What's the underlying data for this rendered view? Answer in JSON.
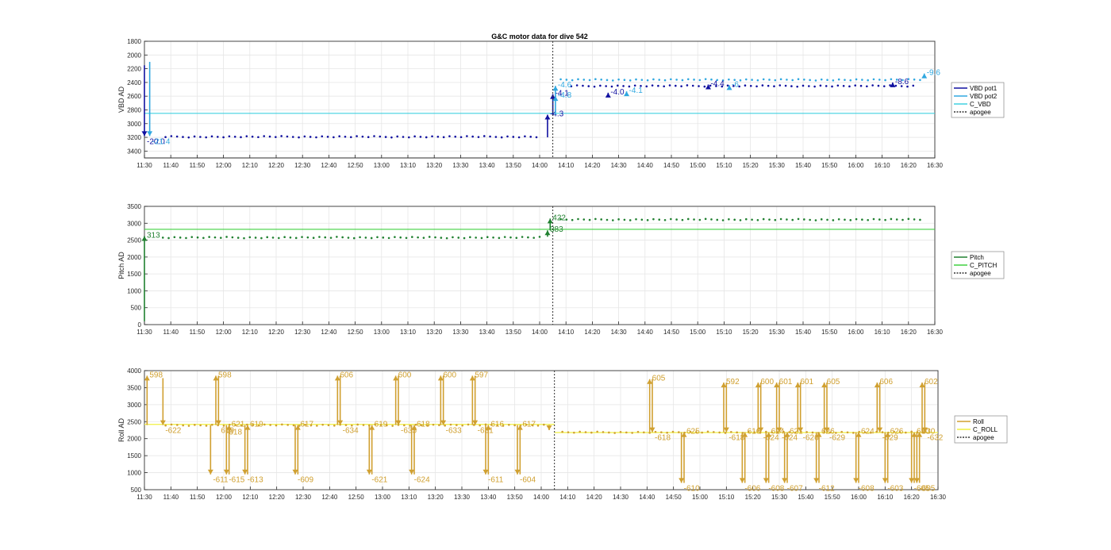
{
  "figure_title": "G&C motor data for dive 542",
  "colors": {
    "vbd_pot1": "#1010a0",
    "vbd_pot2": "#30a8e0",
    "c_vbd": "#40d0e0",
    "pitch": "#208030",
    "c_pitch": "#40d040",
    "roll": "#d0a030",
    "c_roll": "#f0f040",
    "apogee": "#333333",
    "grid": "#e6e6e6",
    "axis": "#262626"
  },
  "chart_data": [
    {
      "type": "scatter",
      "ylabel": "VBD AD",
      "xlabel": "",
      "x_ticks": [
        "11:30",
        "11:40",
        "11:50",
        "12:00",
        "12:10",
        "12:20",
        "12:30",
        "12:40",
        "12:50",
        "13:00",
        "13:10",
        "13:20",
        "13:30",
        "13:40",
        "13:50",
        "14:00",
        "14:10",
        "14:20",
        "14:30",
        "14:40",
        "14:50",
        "15:00",
        "15:10",
        "15:20",
        "15:30",
        "15:40",
        "15:50",
        "16:00",
        "16:10",
        "16:20",
        "16:30"
      ],
      "xlim": [
        "11:30",
        "16:30"
      ],
      "ylim": [
        1800,
        3500
      ],
      "y_reversed": true,
      "y_ticks": [
        1800,
        2000,
        2200,
        2400,
        2600,
        2800,
        3000,
        3200,
        3400
      ],
      "grid": true,
      "legend": {
        "position": "right",
        "entries": [
          "VBD pot1",
          "VBD pot2",
          "C_VBD",
          "apogee"
        ]
      },
      "c_line": 2850,
      "apogee": "14:05",
      "series": [
        {
          "name": "VBD pot1",
          "x_range": [
            "11:38",
            "14:00"
          ],
          "y": 3190
        },
        {
          "name": "VBD pot1",
          "x_range": [
            "14:12",
            "16:22"
          ],
          "y": 2450
        },
        {
          "name": "VBD pot2",
          "x_range": [
            "14:08",
            "16:25"
          ],
          "y": 2360
        }
      ],
      "moves": [
        {
          "series": "VBD pot1",
          "x": "11:30",
          "y0": 2150,
          "y1": 3180,
          "label": "-20.0"
        },
        {
          "series": "VBD pot2",
          "x": "11:32",
          "y0": 2100,
          "y1": 3180,
          "label": "-21.4"
        },
        {
          "series": "VBD pot1",
          "x": "14:03",
          "y0": 3200,
          "y1": 2870,
          "label": "-4.3"
        },
        {
          "series": "VBD pot1",
          "x": "14:05",
          "y0": 2880,
          "y1": 2570,
          "label": "-4.1"
        },
        {
          "series": "VBD pot2",
          "x": "14:06",
          "y0": 2870,
          "y1": 2600,
          "label": "-4.8"
        },
        {
          "series": "VBD pot2",
          "x": "14:06",
          "y0": 2640,
          "y1": 2450,
          "label": "-4.6"
        },
        {
          "series": "VBD pot1",
          "x": "14:26",
          "y0": 2600,
          "y1": 2550,
          "label": "-4.0"
        },
        {
          "series": "VBD pot2",
          "x": "14:33",
          "y0": 2580,
          "y1": 2530,
          "label": "-4.1"
        },
        {
          "series": "VBD pot1",
          "x": "15:04",
          "y0": 2480,
          "y1": 2430,
          "label": "-4.4"
        },
        {
          "series": "VBD pot2",
          "x": "15:12",
          "y0": 2480,
          "y1": 2440,
          "label": "-6"
        },
        {
          "series": "VBD pot1",
          "x": "16:14",
          "y0": 2440,
          "y1": 2400,
          "label": "-8.6"
        },
        {
          "series": "VBD pot2",
          "x": "16:26",
          "y0": 2320,
          "y1": 2270,
          "label": "-9.6"
        }
      ]
    },
    {
      "type": "scatter",
      "ylabel": "Pitch AD",
      "xlabel": "",
      "x_ticks": [
        "11:30",
        "11:40",
        "11:50",
        "12:00",
        "12:10",
        "12:20",
        "12:30",
        "12:40",
        "12:50",
        "13:00",
        "13:10",
        "13:20",
        "13:30",
        "13:40",
        "13:50",
        "14:00",
        "14:10",
        "14:20",
        "14:30",
        "14:40",
        "14:50",
        "15:00",
        "15:10",
        "15:20",
        "15:30",
        "15:40",
        "15:50",
        "16:00",
        "16:10",
        "16:20",
        "16:30"
      ],
      "xlim": [
        "11:30",
        "16:30"
      ],
      "ylim": [
        0,
        3500
      ],
      "y_ticks": [
        0,
        500,
        1000,
        1500,
        2000,
        2500,
        3000,
        3500
      ],
      "grid": true,
      "legend": {
        "position": "right",
        "entries": [
          "Pitch",
          "C_PITCH",
          "apogee"
        ]
      },
      "c_line": 2820,
      "apogee": "14:05",
      "series": [
        {
          "name": "Pitch",
          "x_range": [
            "11:37",
            "14:01"
          ],
          "y": 2580
        },
        {
          "name": "Pitch",
          "x_range": [
            "14:08",
            "16:25"
          ],
          "y": 3110
        }
      ],
      "moves": [
        {
          "series": "Pitch",
          "x": "11:30",
          "y0": 100,
          "y1": 2620,
          "label": "313"
        },
        {
          "series": "Pitch",
          "x": "14:03",
          "y0": 2600,
          "y1": 2790,
          "label": "383"
        },
        {
          "series": "Pitch",
          "x": "14:04",
          "y0": 2790,
          "y1": 3140,
          "label": "422"
        }
      ]
    },
    {
      "type": "scatter",
      "ylabel": "Roll AD",
      "xlabel": "",
      "x_ticks": [
        "11:30",
        "11:40",
        "11:50",
        "12:00",
        "12:10",
        "12:20",
        "12:30",
        "12:40",
        "12:50",
        "13:00",
        "13:10",
        "13:20",
        "13:30",
        "13:40",
        "13:50",
        "14:00",
        "14:10",
        "14:20",
        "14:30",
        "14:40",
        "14:50",
        "15:00",
        "15:10",
        "15:20",
        "15:30",
        "15:40",
        "15:50",
        "16:00",
        "16:10",
        "16:20",
        "16:30"
      ],
      "xlim": [
        "11:30",
        "16:30"
      ],
      "ylim": [
        500,
        4000
      ],
      "y_ticks": [
        500,
        1000,
        1500,
        2000,
        2500,
        3000,
        3500,
        4000
      ],
      "grid": true,
      "legend": {
        "position": "right",
        "entries": [
          "Roll",
          "C_ROLL",
          "apogee"
        ]
      },
      "c_line_segments": [
        {
          "x_range": [
            "11:30",
            "14:05"
          ],
          "y": 2420
        },
        {
          "x_range": [
            "14:05",
            "16:30"
          ],
          "y": 2180
        }
      ],
      "apogee": "14:05",
      "series": [
        {
          "name": "Roll",
          "x_range": [
            "11:38",
            "14:03"
          ],
          "y": 2400
        },
        {
          "name": "Roll",
          "x_range": [
            "14:08",
            "16:25"
          ],
          "y": 2190
        }
      ],
      "moves": [
        {
          "x": "11:31",
          "y0": 2400,
          "y1": 3850,
          "label": "598"
        },
        {
          "x": "11:37",
          "y0": 3780,
          "y1": 2400,
          "label": "-622"
        },
        {
          "x": "11:55",
          "y0": 2400,
          "y1": 950,
          "label": "-611"
        },
        {
          "x": "11:57",
          "y0": 2400,
          "y1": 3850,
          "label": "598"
        },
        {
          "x": "11:58",
          "y0": 3850,
          "y1": 2400,
          "label": "619"
        },
        {
          "x": "12:01",
          "y0": 2400,
          "y1": 950,
          "label": "-615"
        },
        {
          "x": "12:02",
          "y0": 950,
          "y1": 2400,
          "label": "621"
        },
        {
          "x": "12:00",
          "y0": 2350,
          "y1": 2350,
          "label": "-618"
        },
        {
          "x": "12:08",
          "y0": 2400,
          "y1": 950,
          "label": "-613"
        },
        {
          "x": "12:09",
          "y0": 950,
          "y1": 2400,
          "label": "619"
        },
        {
          "x": "12:27",
          "y0": 2400,
          "y1": 950,
          "label": "-609"
        },
        {
          "x": "12:28",
          "y0": 950,
          "y1": 2400,
          "label": "617"
        },
        {
          "x": "12:43",
          "y0": 2400,
          "y1": 3850,
          "label": "606"
        },
        {
          "x": "12:44",
          "y0": 3850,
          "y1": 2400,
          "label": "-634"
        },
        {
          "x": "12:55",
          "y0": 2400,
          "y1": 950,
          "label": "-621"
        },
        {
          "x": "12:56",
          "y0": 950,
          "y1": 2400,
          "label": "619"
        },
        {
          "x": "13:05",
          "y0": 2400,
          "y1": 3850,
          "label": "600"
        },
        {
          "x": "13:06",
          "y0": 3850,
          "y1": 2400,
          "label": "-635"
        },
        {
          "x": "13:11",
          "y0": 2400,
          "y1": 950,
          "label": "-624"
        },
        {
          "x": "13:12",
          "y0": 950,
          "y1": 2400,
          "label": "618"
        },
        {
          "x": "13:22",
          "y0": 2400,
          "y1": 3850,
          "label": "600"
        },
        {
          "x": "13:23",
          "y0": 3850,
          "y1": 2400,
          "label": "-633"
        },
        {
          "x": "13:34",
          "y0": 2400,
          "y1": 3850,
          "label": "597"
        },
        {
          "x": "13:35",
          "y0": 3850,
          "y1": 2400,
          "label": "-631"
        },
        {
          "x": "13:39",
          "y0": 2400,
          "y1": 950,
          "label": "-611"
        },
        {
          "x": "13:40",
          "y0": 950,
          "y1": 2400,
          "label": "616"
        },
        {
          "x": "13:51",
          "y0": 2400,
          "y1": 950,
          "label": "-604"
        },
        {
          "x": "13:52",
          "y0": 950,
          "y1": 2400,
          "label": "617"
        },
        {
          "x": "14:03",
          "y0": 2400,
          "y1": 2250,
          "label": ""
        },
        {
          "x": "14:41",
          "y0": 2190,
          "y1": 3750,
          "label": "605"
        },
        {
          "x": "14:42",
          "y0": 3750,
          "y1": 2190,
          "label": "-618"
        },
        {
          "x": "14:53",
          "y0": 2190,
          "y1": 700,
          "label": "-610"
        },
        {
          "x": "14:54",
          "y0": 700,
          "y1": 2190,
          "label": "625"
        },
        {
          "x": "15:09",
          "y0": 2190,
          "y1": 3650,
          "label": "592"
        },
        {
          "x": "15:10",
          "y0": 3650,
          "y1": 2190,
          "label": "-618"
        },
        {
          "x": "15:16",
          "y0": 2190,
          "y1": 700,
          "label": "-606"
        },
        {
          "x": "15:17",
          "y0": 700,
          "y1": 2190,
          "label": "616"
        },
        {
          "x": "15:22",
          "y0": 2190,
          "y1": 3650,
          "label": "600"
        },
        {
          "x": "15:23",
          "y0": 3650,
          "y1": 2190,
          "label": "-624"
        },
        {
          "x": "15:25",
          "y0": 2190,
          "y1": 700,
          "label": "-608"
        },
        {
          "x": "15:26",
          "y0": 700,
          "y1": 2190,
          "label": "624"
        },
        {
          "x": "15:29",
          "y0": 2190,
          "y1": 3650,
          "label": "601"
        },
        {
          "x": "15:30",
          "y0": 3650,
          "y1": 2190,
          "label": "-624"
        },
        {
          "x": "15:32",
          "y0": 2190,
          "y1": 700,
          "label": "-607"
        },
        {
          "x": "15:33",
          "y0": 700,
          "y1": 2190,
          "label": "621"
        },
        {
          "x": "15:37",
          "y0": 2190,
          "y1": 3650,
          "label": "601"
        },
        {
          "x": "15:38",
          "y0": 3650,
          "y1": 2190,
          "label": "-626"
        },
        {
          "x": "15:44",
          "y0": 2190,
          "y1": 700,
          "label": "-612"
        },
        {
          "x": "15:45",
          "y0": 700,
          "y1": 2190,
          "label": "626"
        },
        {
          "x": "15:47",
          "y0": 2190,
          "y1": 3650,
          "label": "605"
        },
        {
          "x": "15:48",
          "y0": 3650,
          "y1": 2190,
          "label": "-629"
        },
        {
          "x": "15:59",
          "y0": 2190,
          "y1": 700,
          "label": "-608"
        },
        {
          "x": "16:00",
          "y0": 700,
          "y1": 2190,
          "label": "624"
        },
        {
          "x": "16:07",
          "y0": 2190,
          "y1": 3650,
          "label": "606"
        },
        {
          "x": "16:08",
          "y0": 3650,
          "y1": 2190,
          "label": "-629"
        },
        {
          "x": "16:10",
          "y0": 2190,
          "y1": 700,
          "label": "-603"
        },
        {
          "x": "16:11",
          "y0": 700,
          "y1": 2190,
          "label": "626"
        },
        {
          "x": "16:20",
          "y0": 2190,
          "y1": 700,
          "label": "-605"
        },
        {
          "x": "16:21",
          "y0": 700,
          "y1": 2190,
          "label": "630"
        },
        {
          "x": "16:22",
          "y0": 2190,
          "y1": 700,
          "label": "-605"
        },
        {
          "x": "16:23",
          "y0": 700,
          "y1": 2190,
          "label": "630"
        },
        {
          "x": "16:24",
          "y0": 2190,
          "y1": 3650,
          "label": "602"
        },
        {
          "x": "16:25",
          "y0": 3650,
          "y1": 2190,
          "label": "-632"
        }
      ]
    }
  ]
}
